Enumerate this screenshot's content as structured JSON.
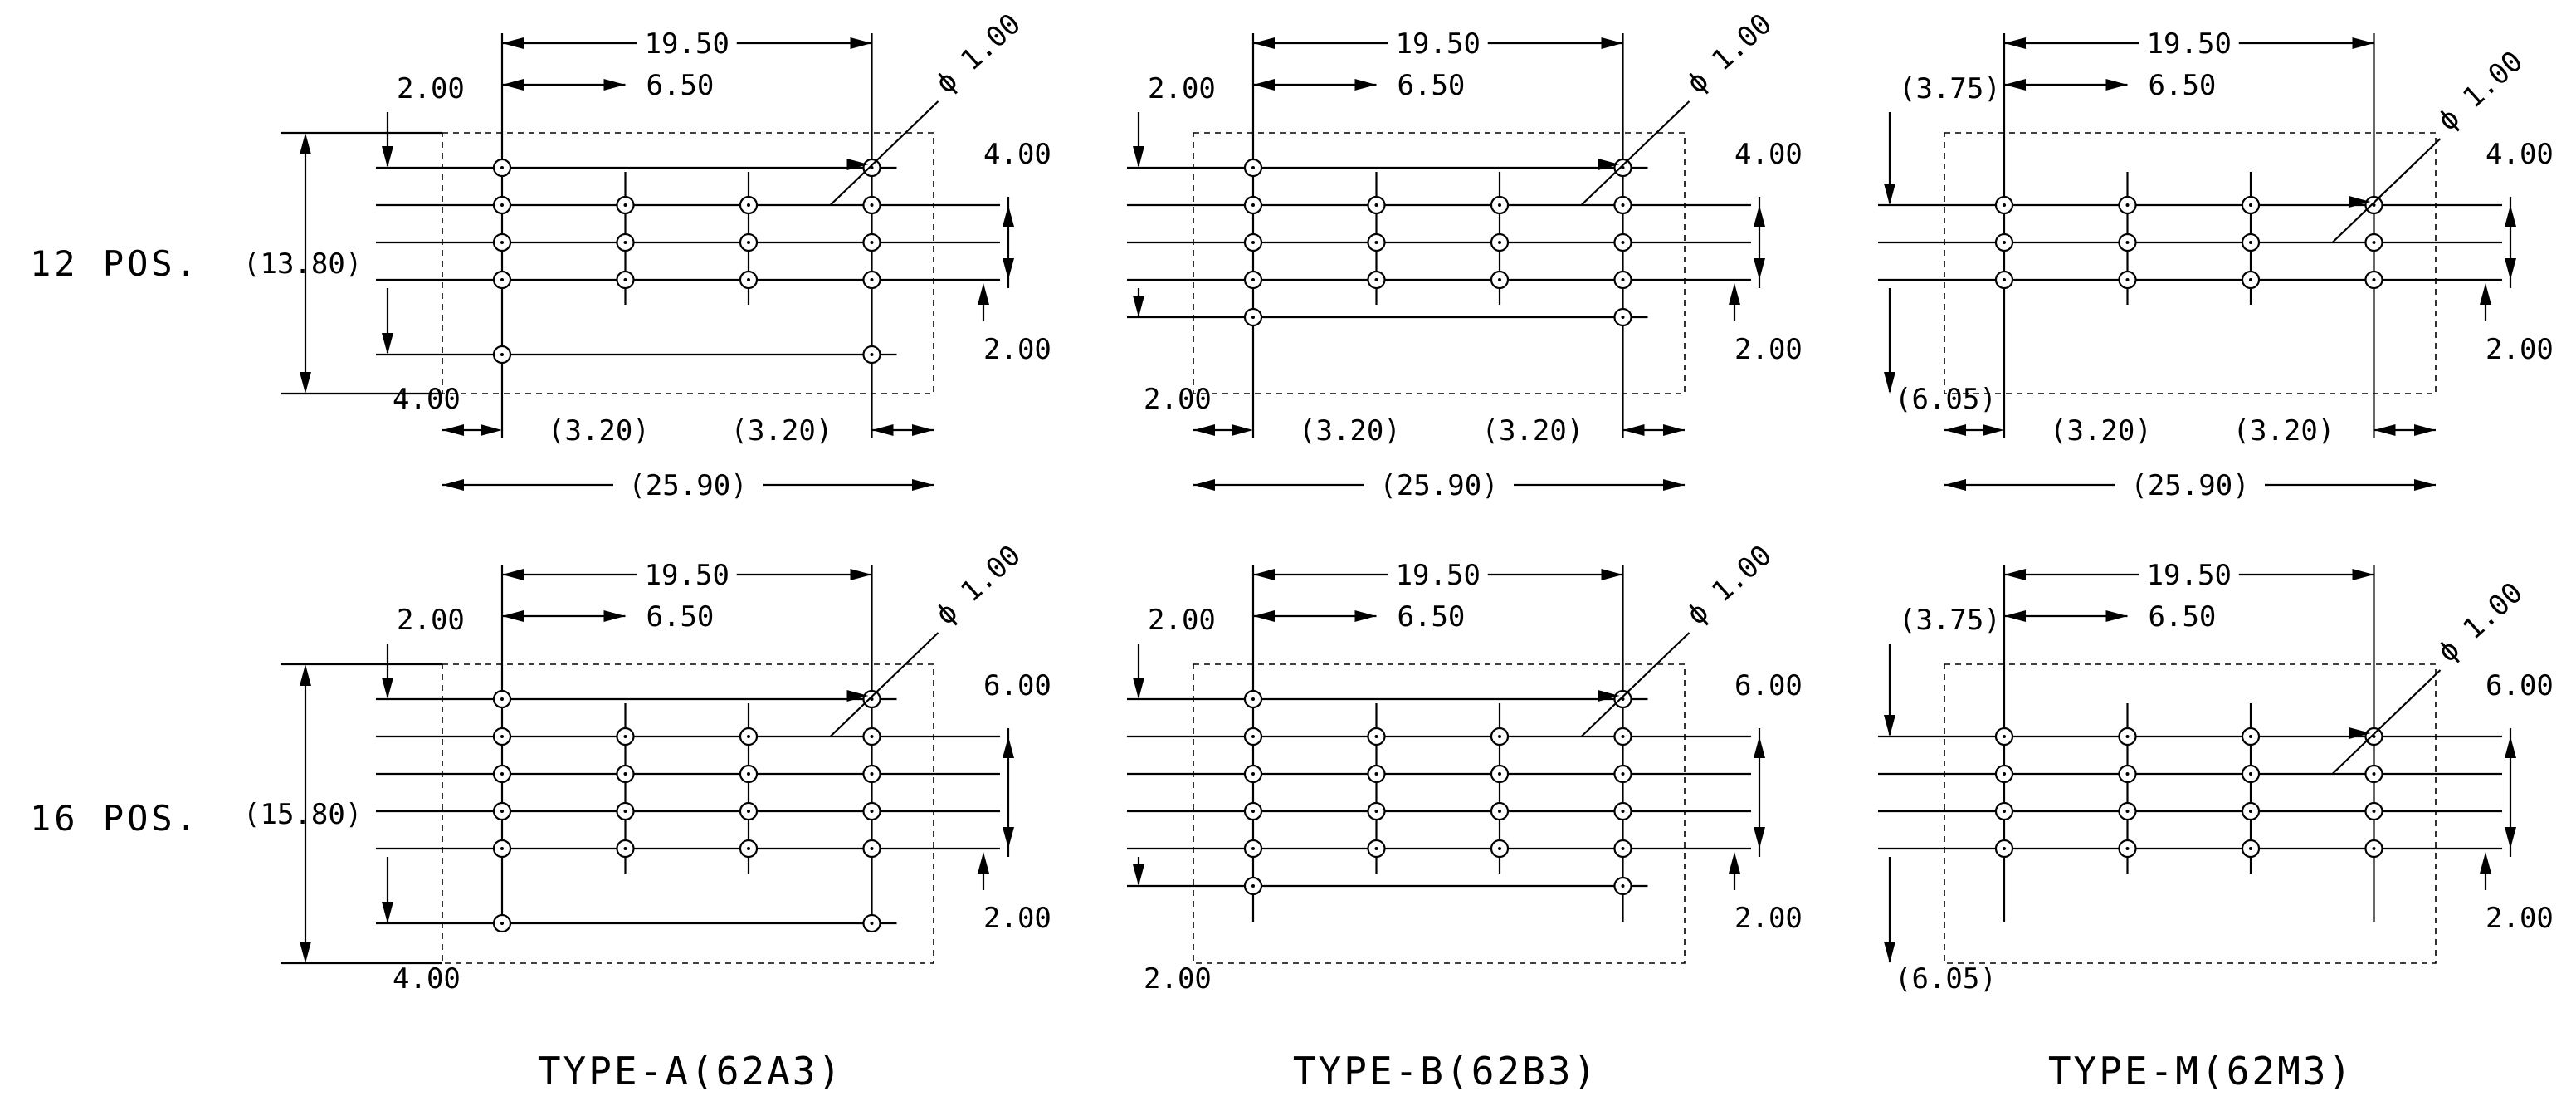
{
  "row_labels": {
    "pos12": "12 POS.",
    "pos16": "16 POS."
  },
  "panels": [
    {
      "id": "A12",
      "dims": {
        "overall_w": "19.50",
        "pitch": "6.50",
        "hole": "1.00",
        "top_left": "2.00",
        "top_right": "4.00",
        "bottom_right": "2.00",
        "height": "(13.80)",
        "bottom_left": "4.00",
        "edge_l": "(3.20)",
        "edge_r": "(3.20)",
        "outline_w": "(25.90)"
      }
    },
    {
      "id": "B12",
      "dims": {
        "overall_w": "19.50",
        "pitch": "6.50",
        "hole": "1.00",
        "top_left": "2.00",
        "top_right": "4.00",
        "bottom_right": "2.00",
        "bottom_left": "2.00",
        "edge_l": "(3.20)",
        "edge_r": "(3.20)",
        "outline_w": "(25.90)"
      }
    },
    {
      "id": "M12",
      "dims": {
        "overall_w": "19.50",
        "pitch": "6.50",
        "hole": "1.00",
        "top_left": "(3.75)",
        "top_right": "4.00",
        "bottom_right": "2.00",
        "bottom_left": "(6.05)",
        "edge_l": "(3.20)",
        "edge_r": "(3.20)",
        "outline_w": "(25.90)"
      }
    },
    {
      "id": "A16",
      "dims": {
        "overall_w": "19.50",
        "pitch": "6.50",
        "hole": "1.00",
        "top_left": "2.00",
        "top_right": "6.00",
        "bottom_right": "2.00",
        "height": "(15.80)",
        "bottom_left": "4.00"
      }
    },
    {
      "id": "B16",
      "dims": {
        "overall_w": "19.50",
        "pitch": "6.50",
        "hole": "1.00",
        "top_left": "2.00",
        "top_right": "6.00",
        "bottom_right": "2.00",
        "bottom_left": "2.00"
      }
    },
    {
      "id": "M16",
      "dims": {
        "overall_w": "19.50",
        "pitch": "6.50",
        "hole": "1.00",
        "top_left": "(3.75)",
        "top_right": "6.00",
        "bottom_right": "2.00",
        "bottom_left": "(6.05)"
      }
    }
  ],
  "type_labels": [
    "TYPE-A(62A3)",
    "TYPE-B(62B3)",
    "TYPE-M(62M3)"
  ],
  "diameter_symbol": "ϕ",
  "colors": {
    "line": "#000000",
    "background": "#ffffff"
  }
}
